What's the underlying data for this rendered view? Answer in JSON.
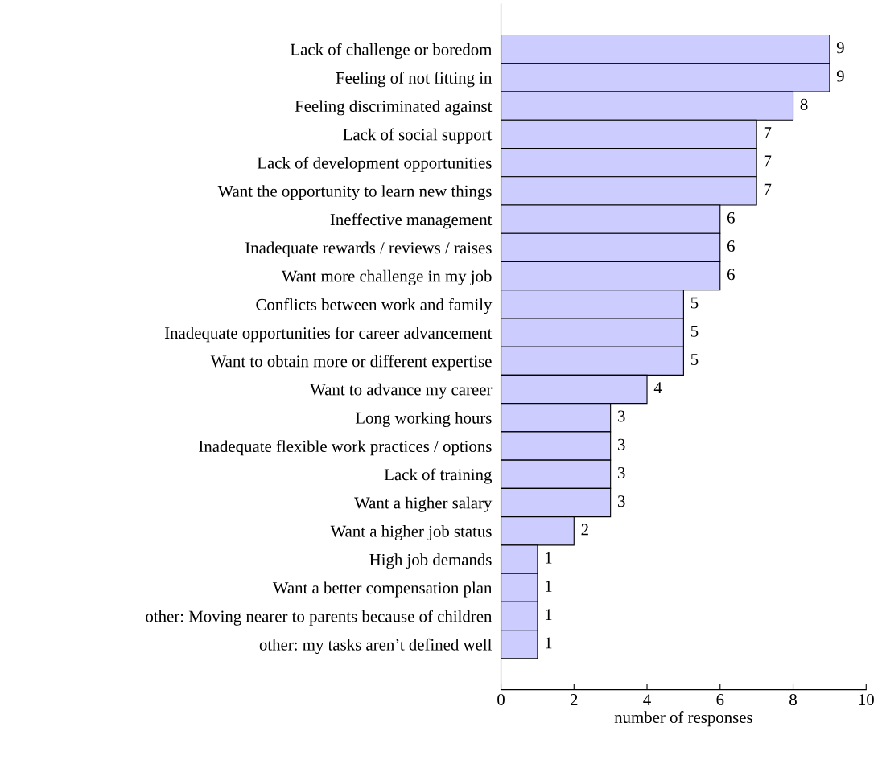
{
  "chart_data": {
    "type": "bar",
    "orientation": "horizontal",
    "xlabel": "number of responses",
    "categories": [
      "Lack of challenge or boredom",
      "Feeling of not fitting in",
      "Feeling discriminated against",
      "Lack of social support",
      "Lack of development opportunities",
      "Want the opportunity to learn new things",
      "Ineffective management",
      "Inadequate rewards / reviews / raises",
      "Want more challenge in my job",
      "Conflicts between work and family",
      "Inadequate opportunities for career advancement",
      "Want to obtain more or different expertise",
      "Want to advance my career",
      "Long working hours",
      "Inadequate flexible work practices / options",
      "Lack of training",
      "Want a higher salary",
      "Want a higher job status",
      "High job demands",
      "Want a better compensation plan",
      "other: Moving nearer to parents because of children",
      "other: my tasks aren’t defined well"
    ],
    "values": [
      9,
      9,
      8,
      7,
      7,
      7,
      6,
      6,
      6,
      5,
      5,
      5,
      4,
      3,
      3,
      3,
      3,
      2,
      1,
      1,
      1,
      1
    ],
    "color": "#ccccff",
    "xlim": [
      0,
      10
    ],
    "xticks": [
      0,
      2,
      4,
      6,
      8,
      10
    ],
    "data_labels": true
  }
}
